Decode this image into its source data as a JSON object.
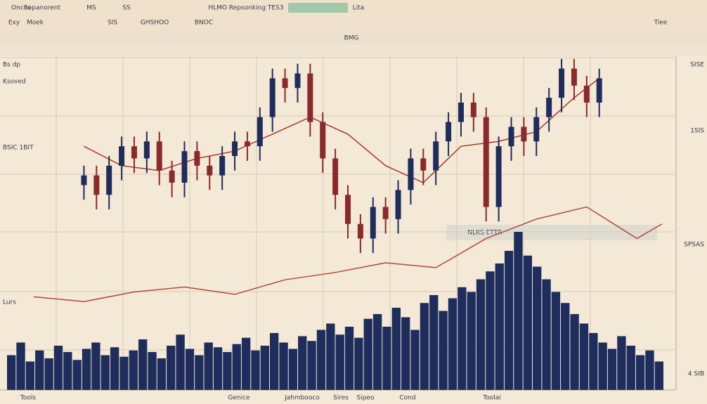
{
  "header": {
    "row1": [
      "Oncos",
      "Sepanorent",
      "MS",
      "SS",
      "HLMO Repsonking TES3",
      "Lita"
    ],
    "row2": [
      "Exy",
      "Moek",
      "SIS",
      "GHSHOO",
      "BNOC",
      "Tiee"
    ]
  },
  "center_label": "BMG",
  "banner": "NLKS ETTR",
  "right_labels": [
    "SISE",
    "1SIS",
    "SPSAS",
    "4 SIB"
  ],
  "left_labels": [
    "Bs dp",
    "Ksoved",
    "BSIC 1BIT",
    "Lurs"
  ],
  "footer": [
    "Tools",
    "Genice",
    "Jahmbooco",
    "Sires",
    "Sipeo",
    "Cond",
    "Toolai"
  ],
  "chart_data": [
    {
      "type": "candlestick",
      "x": [
        0,
        1,
        2,
        3,
        4,
        5,
        6,
        7,
        8,
        9,
        10,
        11,
        12,
        13,
        14,
        15,
        16,
        17,
        18,
        19,
        20,
        21,
        22,
        23,
        24,
        25,
        26,
        27,
        28,
        29,
        30,
        31,
        32,
        33,
        34,
        35,
        36,
        37,
        38,
        39,
        40,
        41
      ],
      "open": [
        44,
        48,
        40,
        52,
        60,
        55,
        62,
        50,
        45,
        58,
        52,
        48,
        56,
        62,
        60,
        72,
        88,
        84,
        90,
        70,
        55,
        40,
        28,
        22,
        35,
        30,
        42,
        55,
        50,
        62,
        70,
        78,
        72,
        35,
        60,
        68,
        62,
        72,
        80,
        92,
        85,
        78
      ],
      "high": [
        52,
        52,
        56,
        64,
        64,
        66,
        66,
        54,
        62,
        62,
        56,
        60,
        66,
        66,
        76,
        92,
        92,
        94,
        94,
        74,
        59,
        44,
        32,
        39,
        39,
        46,
        59,
        59,
        66,
        74,
        82,
        82,
        76,
        64,
        72,
        72,
        76,
        84,
        96,
        96,
        89,
        92
      ],
      "low": [
        38,
        34,
        34,
        46,
        49,
        49,
        44,
        39,
        39,
        46,
        42,
        42,
        50,
        54,
        54,
        66,
        78,
        78,
        64,
        49,
        34,
        22,
        16,
        16,
        24,
        24,
        36,
        44,
        44,
        56,
        64,
        66,
        29,
        29,
        54,
        56,
        56,
        66,
        74,
        79,
        72,
        72
      ],
      "close": [
        48,
        40,
        52,
        60,
        55,
        62,
        50,
        45,
        58,
        52,
        48,
        56,
        62,
        60,
        72,
        88,
        84,
        90,
        70,
        55,
        40,
        28,
        22,
        35,
        30,
        42,
        55,
        50,
        62,
        70,
        78,
        72,
        35,
        60,
        68,
        62,
        72,
        80,
        92,
        85,
        78,
        88
      ],
      "up_color": "#1f2d5c",
      "down_color": "#8b2a2a",
      "xlim": [
        -5,
        47
      ],
      "ylim": [
        -10,
        100
      ],
      "overlays": [
        {
          "color": "#a33a2e",
          "x": [
            0,
            3,
            6,
            9,
            12,
            15,
            18,
            21,
            24,
            27,
            30,
            33,
            36,
            39,
            41
          ],
          "values": [
            60,
            52,
            50,
            55,
            58,
            65,
            72,
            65,
            52,
            45,
            60,
            62,
            66,
            80,
            88
          ]
        },
        {
          "color": "#b04a3a",
          "x": [
            -4,
            0,
            4,
            8,
            12,
            16,
            20,
            24,
            28,
            32,
            36,
            40,
            44,
            46
          ],
          "values": [
            -2,
            -4,
            0,
            2,
            -1,
            5,
            8,
            12,
            10,
            22,
            30,
            35,
            22,
            28
          ]
        }
      ]
    },
    {
      "type": "bar",
      "color": "#1f2d5c",
      "ylim": [
        0,
        100
      ],
      "values": [
        22,
        30,
        18,
        25,
        20,
        28,
        24,
        19,
        26,
        30,
        22,
        27,
        21,
        25,
        32,
        24,
        20,
        28,
        35,
        26,
        22,
        30,
        27,
        24,
        29,
        33,
        25,
        28,
        36,
        30,
        26,
        34,
        31,
        38,
        42,
        35,
        40,
        33,
        45,
        48,
        40,
        52,
        46,
        38,
        55,
        60,
        50,
        58,
        65,
        62,
        70,
        75,
        80,
        88,
        100,
        85,
        78,
        70,
        62,
        55,
        48,
        42,
        36,
        30,
        26,
        34,
        28,
        22,
        25,
        18
      ]
    }
  ]
}
